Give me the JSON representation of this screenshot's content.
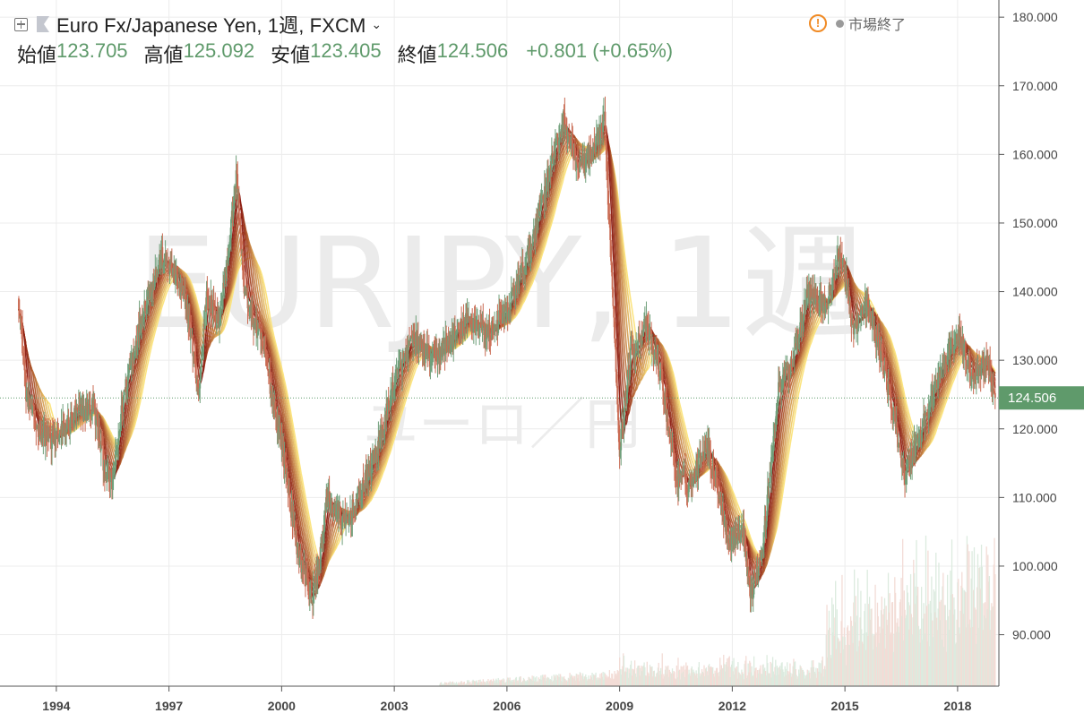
{
  "header": {
    "title": "Euro Fx/Japanese Yen, 1週, FXCM",
    "open_label": "始値",
    "open_value": "123.705",
    "high_label": "高値",
    "high_value": "125.092",
    "low_label": "安値",
    "low_value": "123.405",
    "close_label": "終値",
    "close_value": "124.506",
    "change": "+0.801 (+0.65%)",
    "market_status": "市場終了",
    "warning_symbol": "!"
  },
  "watermark": {
    "symbol": "EURJPY, 1週",
    "description": "ユーロ／円"
  },
  "colors": {
    "up": "#6f9f7a",
    "down": "#c96a52",
    "ma_dark": "#8b1a10",
    "ma_light": "#fbe37a",
    "price_line": "#5f9a6b",
    "price_tag": "#5f9a6b",
    "warning": "#f08a24"
  },
  "chart_data": {
    "type": "candlestick",
    "symbol": "EURJPY",
    "timeframe": "1週",
    "x_ticks": [
      "1994",
      "1997",
      "2000",
      "2003",
      "2006",
      "2009",
      "2012",
      "2015",
      "2018"
    ],
    "x_tick_years": [
      1994,
      1997,
      2000,
      2003,
      2006,
      2009,
      2012,
      2015,
      2018
    ],
    "x_range": [
      1992.5,
      2019.1
    ],
    "y_ticks": [
      "180.000",
      "170.000",
      "160.000",
      "150.000",
      "140.000",
      "130.000",
      "120.000",
      "110.000",
      "100.000",
      "90.000"
    ],
    "y_tick_values": [
      180,
      170,
      160,
      150,
      140,
      130,
      120,
      110,
      100,
      90
    ],
    "ylim": [
      82.5,
      182.5
    ],
    "last_price": 124.506,
    "last_price_label": "124.506",
    "price_path": [
      [
        1993.0,
        139
      ],
      [
        1993.2,
        125
      ],
      [
        1993.5,
        120
      ],
      [
        1993.9,
        118
      ],
      [
        1994.5,
        122
      ],
      [
        1995.0,
        123
      ],
      [
        1995.3,
        114
      ],
      [
        1995.5,
        112
      ],
      [
        1995.8,
        125
      ],
      [
        1996.3,
        137
      ],
      [
        1996.8,
        145
      ],
      [
        1997.2,
        142
      ],
      [
        1997.5,
        137
      ],
      [
        1997.8,
        125
      ],
      [
        1998.0,
        140
      ],
      [
        1998.3,
        135
      ],
      [
        1998.6,
        147
      ],
      [
        1998.8,
        157
      ],
      [
        1999.0,
        140
      ],
      [
        1999.5,
        132
      ],
      [
        2000.0,
        118
      ],
      [
        2000.4,
        103
      ],
      [
        2000.8,
        95
      ],
      [
        2001.0,
        100
      ],
      [
        2001.2,
        110
      ],
      [
        2001.7,
        106
      ],
      [
        2002.2,
        112
      ],
      [
        2002.6,
        118
      ],
      [
        2003.0,
        127
      ],
      [
        2003.5,
        133
      ],
      [
        2004.0,
        130
      ],
      [
        2004.5,
        133
      ],
      [
        2005.0,
        136
      ],
      [
        2005.5,
        134
      ],
      [
        2006.0,
        137
      ],
      [
        2006.6,
        146
      ],
      [
        2007.1,
        157
      ],
      [
        2007.5,
        165
      ],
      [
        2007.9,
        158
      ],
      [
        2008.3,
        160
      ],
      [
        2008.6,
        165
      ],
      [
        2008.9,
        130
      ],
      [
        2009.0,
        117
      ],
      [
        2009.3,
        131
      ],
      [
        2009.7,
        135
      ],
      [
        2010.1,
        128
      ],
      [
        2010.5,
        113
      ],
      [
        2010.9,
        112
      ],
      [
        2011.3,
        118
      ],
      [
        2011.6,
        112
      ],
      [
        2011.9,
        104
      ],
      [
        2012.3,
        105
      ],
      [
        2012.5,
        96
      ],
      [
        2012.8,
        102
      ],
      [
        2013.2,
        125
      ],
      [
        2013.6,
        130
      ],
      [
        2014.0,
        140
      ],
      [
        2014.5,
        138
      ],
      [
        2014.9,
        146
      ],
      [
        2015.2,
        135
      ],
      [
        2015.6,
        138
      ],
      [
        2016.0,
        130
      ],
      [
        2016.3,
        122
      ],
      [
        2016.6,
        113
      ],
      [
        2016.9,
        118
      ],
      [
        2017.1,
        121
      ],
      [
        2017.6,
        129
      ],
      [
        2018.0,
        134
      ],
      [
        2018.4,
        128
      ],
      [
        2018.8,
        130
      ],
      [
        2019.0,
        124.5
      ]
    ],
    "volume_start_year": 2004.2,
    "volume_surge_year": 2014.5
  }
}
